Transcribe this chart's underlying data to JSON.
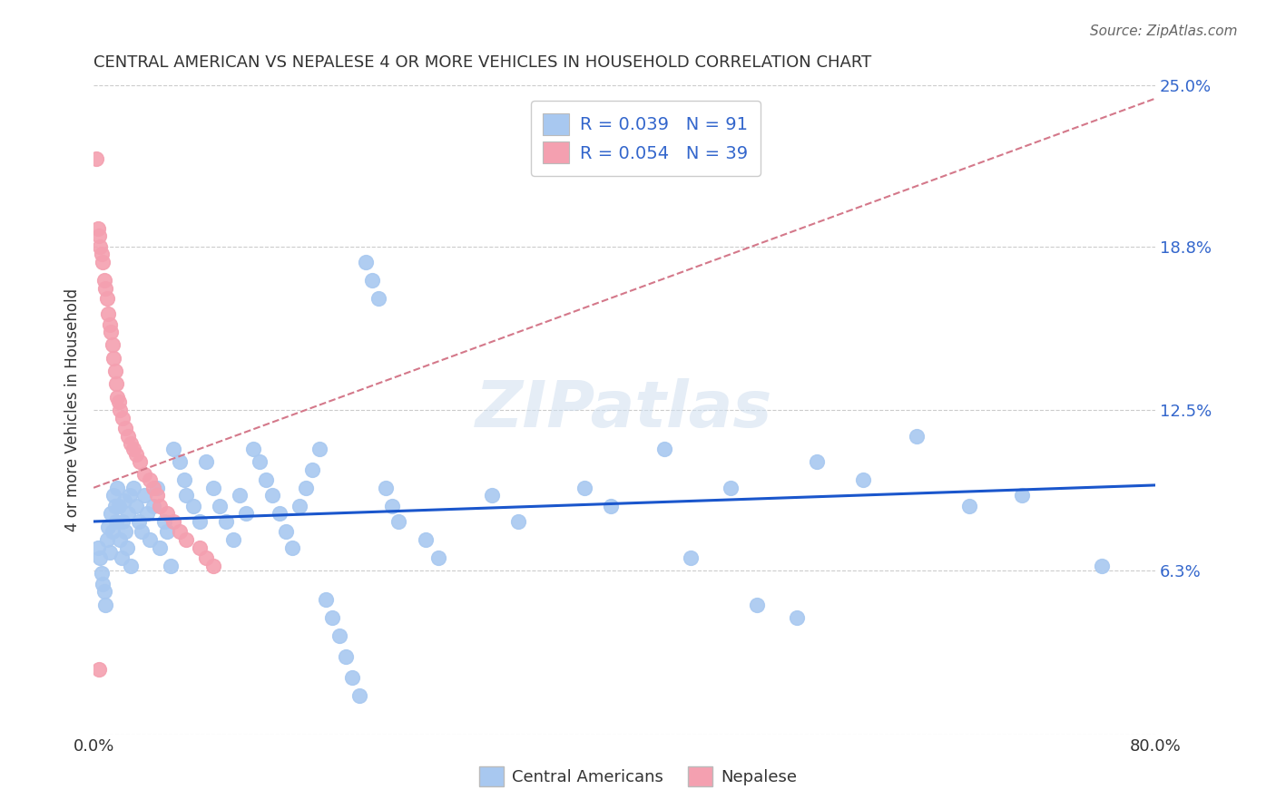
{
  "title": "CENTRAL AMERICAN VS NEPALESE 4 OR MORE VEHICLES IN HOUSEHOLD CORRELATION CHART",
  "source": "Source: ZipAtlas.com",
  "ylabel_label": "4 or more Vehicles in Household",
  "x_min": 0.0,
  "x_max": 0.8,
  "y_min": 0.0,
  "y_max": 0.25,
  "central_R": 0.039,
  "central_N": 91,
  "nepalese_R": 0.054,
  "nepalese_N": 39,
  "central_color": "#a8c8f0",
  "nepalese_color": "#f4a0b0",
  "central_line_color": "#1a56cc",
  "nepalese_line_color": "#d4788a",
  "background_color": "#ffffff",
  "watermark": "ZIPatlas",
  "ca_trend_x": [
    0.0,
    0.8
  ],
  "ca_trend_y": [
    0.082,
    0.096
  ],
  "nep_trend_x": [
    0.0,
    0.8
  ],
  "nep_trend_y": [
    0.095,
    0.245
  ],
  "central_points_x": [
    0.003,
    0.005,
    0.006,
    0.007,
    0.008,
    0.009,
    0.01,
    0.011,
    0.012,
    0.013,
    0.014,
    0.015,
    0.016,
    0.017,
    0.018,
    0.019,
    0.02,
    0.021,
    0.022,
    0.023,
    0.024,
    0.025,
    0.026,
    0.027,
    0.028,
    0.03,
    0.032,
    0.034,
    0.036,
    0.038,
    0.04,
    0.042,
    0.045,
    0.048,
    0.05,
    0.053,
    0.055,
    0.058,
    0.06,
    0.065,
    0.068,
    0.07,
    0.075,
    0.08,
    0.085,
    0.09,
    0.095,
    0.1,
    0.105,
    0.11,
    0.115,
    0.12,
    0.125,
    0.13,
    0.135,
    0.14,
    0.145,
    0.15,
    0.155,
    0.16,
    0.165,
    0.17,
    0.175,
    0.18,
    0.185,
    0.19,
    0.195,
    0.2,
    0.205,
    0.21,
    0.215,
    0.22,
    0.225,
    0.23,
    0.25,
    0.26,
    0.3,
    0.32,
    0.37,
    0.39,
    0.43,
    0.45,
    0.48,
    0.5,
    0.53,
    0.545,
    0.58,
    0.62,
    0.66,
    0.7,
    0.76
  ],
  "central_points_y": [
    0.072,
    0.068,
    0.062,
    0.058,
    0.055,
    0.05,
    0.075,
    0.08,
    0.07,
    0.085,
    0.078,
    0.092,
    0.088,
    0.082,
    0.095,
    0.088,
    0.075,
    0.068,
    0.082,
    0.09,
    0.078,
    0.072,
    0.085,
    0.092,
    0.065,
    0.095,
    0.088,
    0.082,
    0.078,
    0.092,
    0.085,
    0.075,
    0.088,
    0.095,
    0.072,
    0.082,
    0.078,
    0.065,
    0.11,
    0.105,
    0.098,
    0.092,
    0.088,
    0.082,
    0.105,
    0.095,
    0.088,
    0.082,
    0.075,
    0.092,
    0.085,
    0.11,
    0.105,
    0.098,
    0.092,
    0.085,
    0.078,
    0.072,
    0.088,
    0.095,
    0.102,
    0.11,
    0.052,
    0.045,
    0.038,
    0.03,
    0.022,
    0.015,
    0.182,
    0.175,
    0.168,
    0.095,
    0.088,
    0.082,
    0.075,
    0.068,
    0.092,
    0.082,
    0.095,
    0.088,
    0.11,
    0.068,
    0.095,
    0.05,
    0.045,
    0.105,
    0.098,
    0.115,
    0.088,
    0.092,
    0.065
  ],
  "nepalese_points_x": [
    0.002,
    0.003,
    0.004,
    0.005,
    0.006,
    0.007,
    0.008,
    0.009,
    0.01,
    0.011,
    0.012,
    0.013,
    0.014,
    0.015,
    0.016,
    0.017,
    0.018,
    0.019,
    0.02,
    0.022,
    0.024,
    0.026,
    0.028,
    0.03,
    0.032,
    0.035,
    0.038,
    0.042,
    0.045,
    0.048,
    0.05,
    0.055,
    0.06,
    0.065,
    0.07,
    0.08,
    0.085,
    0.09,
    0.004
  ],
  "nepalese_points_y": [
    0.222,
    0.195,
    0.192,
    0.188,
    0.185,
    0.182,
    0.175,
    0.172,
    0.168,
    0.162,
    0.158,
    0.155,
    0.15,
    0.145,
    0.14,
    0.135,
    0.13,
    0.128,
    0.125,
    0.122,
    0.118,
    0.115,
    0.112,
    0.11,
    0.108,
    0.105,
    0.1,
    0.098,
    0.095,
    0.092,
    0.088,
    0.085,
    0.082,
    0.078,
    0.075,
    0.072,
    0.068,
    0.065,
    0.025
  ]
}
